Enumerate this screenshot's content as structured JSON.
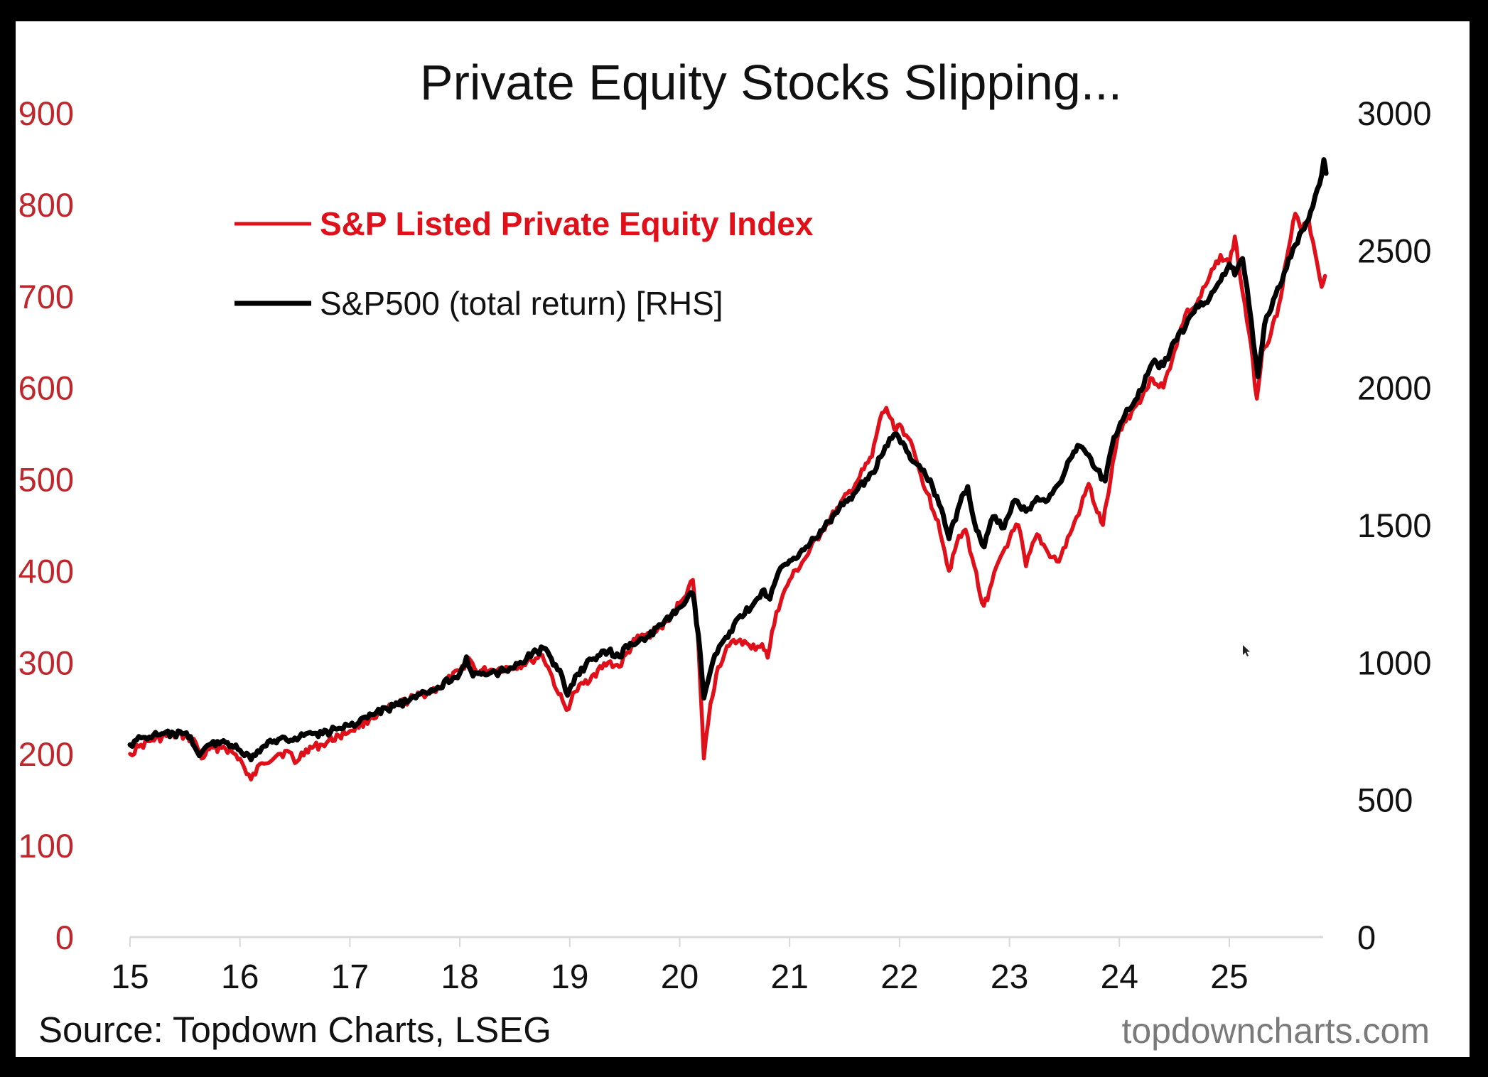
{
  "chart_data": {
    "type": "line",
    "title": "Private Equity Stocks Slipping...",
    "source": "Source: Topdown Charts, LSEG",
    "watermark": "topdowncharts.com",
    "xlabel": "",
    "x_ticks": [
      "15",
      "16",
      "17",
      "18",
      "19",
      "20",
      "21",
      "22",
      "23",
      "24",
      "25"
    ],
    "x_range": [
      2015,
      2025.85
    ],
    "y_left": {
      "label": "",
      "ticks": [
        "0",
        "100",
        "200",
        "300",
        "400",
        "500",
        "600",
        "700",
        "800",
        "900"
      ],
      "range": [
        0,
        900
      ],
      "color": "#c0272d"
    },
    "y_right": {
      "label": "",
      "ticks": [
        "0",
        "500",
        "1000",
        "1500",
        "2000",
        "2500",
        "3000"
      ],
      "range": [
        0,
        3000
      ],
      "color": "#111111"
    },
    "grid": false,
    "legend_position": "top-left",
    "series": [
      {
        "name": "S&P Listed Private Equity Index",
        "axis": "left",
        "color": "#e0101a",
        "points": [
          [
            2015.0,
            200
          ],
          [
            2015.08,
            208
          ],
          [
            2015.2,
            215
          ],
          [
            2015.35,
            220
          ],
          [
            2015.5,
            220
          ],
          [
            2015.6,
            212
          ],
          [
            2015.65,
            195
          ],
          [
            2015.72,
            205
          ],
          [
            2015.85,
            208
          ],
          [
            2016.0,
            195
          ],
          [
            2016.06,
            178
          ],
          [
            2016.1,
            172
          ],
          [
            2016.2,
            190
          ],
          [
            2016.35,
            200
          ],
          [
            2016.45,
            202
          ],
          [
            2016.5,
            190
          ],
          [
            2016.6,
            205
          ],
          [
            2016.75,
            210
          ],
          [
            2016.9,
            220
          ],
          [
            2017.0,
            225
          ],
          [
            2017.2,
            240
          ],
          [
            2017.4,
            252
          ],
          [
            2017.6,
            262
          ],
          [
            2017.8,
            272
          ],
          [
            2018.0,
            290
          ],
          [
            2018.08,
            305
          ],
          [
            2018.15,
            290
          ],
          [
            2018.3,
            292
          ],
          [
            2018.5,
            295
          ],
          [
            2018.65,
            302
          ],
          [
            2018.75,
            308
          ],
          [
            2018.82,
            290
          ],
          [
            2018.9,
            265
          ],
          [
            2018.97,
            248
          ],
          [
            2019.05,
            268
          ],
          [
            2019.2,
            285
          ],
          [
            2019.35,
            300
          ],
          [
            2019.45,
            295
          ],
          [
            2019.6,
            325
          ],
          [
            2019.75,
            332
          ],
          [
            2019.9,
            345
          ],
          [
            2020.0,
            365
          ],
          [
            2020.12,
            390
          ],
          [
            2020.17,
            320
          ],
          [
            2020.22,
            195
          ],
          [
            2020.28,
            255
          ],
          [
            2020.35,
            295
          ],
          [
            2020.45,
            318
          ],
          [
            2020.55,
            325
          ],
          [
            2020.65,
            315
          ],
          [
            2020.75,
            320
          ],
          [
            2020.8,
            305
          ],
          [
            2020.88,
            355
          ],
          [
            2021.0,
            390
          ],
          [
            2021.15,
            415
          ],
          [
            2021.3,
            445
          ],
          [
            2021.45,
            470
          ],
          [
            2021.6,
            495
          ],
          [
            2021.75,
            525
          ],
          [
            2021.82,
            565
          ],
          [
            2021.88,
            578
          ],
          [
            2021.95,
            555
          ],
          [
            2022.0,
            560
          ],
          [
            2022.08,
            545
          ],
          [
            2022.18,
            510
          ],
          [
            2022.25,
            485
          ],
          [
            2022.35,
            455
          ],
          [
            2022.45,
            400
          ],
          [
            2022.52,
            430
          ],
          [
            2022.6,
            445
          ],
          [
            2022.68,
            405
          ],
          [
            2022.75,
            365
          ],
          [
            2022.8,
            368
          ],
          [
            2022.9,
            410
          ],
          [
            2023.0,
            435
          ],
          [
            2023.08,
            450
          ],
          [
            2023.15,
            405
          ],
          [
            2023.25,
            440
          ],
          [
            2023.35,
            420
          ],
          [
            2023.45,
            410
          ],
          [
            2023.55,
            440
          ],
          [
            2023.65,
            470
          ],
          [
            2023.72,
            495
          ],
          [
            2023.78,
            470
          ],
          [
            2023.85,
            450
          ],
          [
            2023.92,
            500
          ],
          [
            2024.0,
            555
          ],
          [
            2024.15,
            580
          ],
          [
            2024.3,
            610
          ],
          [
            2024.4,
            600
          ],
          [
            2024.5,
            640
          ],
          [
            2024.6,
            680
          ],
          [
            2024.7,
            690
          ],
          [
            2024.8,
            715
          ],
          [
            2024.92,
            745
          ],
          [
            2025.0,
            735
          ],
          [
            2025.05,
            765
          ],
          [
            2025.1,
            720
          ],
          [
            2025.18,
            660
          ],
          [
            2025.25,
            588
          ],
          [
            2025.3,
            640
          ],
          [
            2025.38,
            660
          ],
          [
            2025.45,
            690
          ],
          [
            2025.52,
            740
          ],
          [
            2025.6,
            790
          ],
          [
            2025.66,
            770
          ],
          [
            2025.72,
            785
          ],
          [
            2025.76,
            760
          ],
          [
            2025.8,
            735
          ],
          [
            2025.84,
            710
          ],
          [
            2025.87,
            722
          ]
        ]
      },
      {
        "name": "S&P500 (total return) [RHS]",
        "axis": "right",
        "color": "#000000",
        "points": [
          [
            2015.0,
            700
          ],
          [
            2015.1,
            725
          ],
          [
            2015.25,
            735
          ],
          [
            2015.4,
            740
          ],
          [
            2015.55,
            730
          ],
          [
            2015.63,
            660
          ],
          [
            2015.72,
            700
          ],
          [
            2015.85,
            715
          ],
          [
            2016.0,
            680
          ],
          [
            2016.1,
            645
          ],
          [
            2016.2,
            690
          ],
          [
            2016.35,
            720
          ],
          [
            2016.5,
            725
          ],
          [
            2016.6,
            740
          ],
          [
            2016.75,
            740
          ],
          [
            2016.9,
            760
          ],
          [
            2017.0,
            770
          ],
          [
            2017.2,
            810
          ],
          [
            2017.4,
            840
          ],
          [
            2017.6,
            870
          ],
          [
            2017.8,
            910
          ],
          [
            2018.0,
            960
          ],
          [
            2018.06,
            1020
          ],
          [
            2018.12,
            950
          ],
          [
            2018.25,
            955
          ],
          [
            2018.4,
            970
          ],
          [
            2018.55,
            1000
          ],
          [
            2018.7,
            1040
          ],
          [
            2018.78,
            1050
          ],
          [
            2018.85,
            990
          ],
          [
            2018.93,
            950
          ],
          [
            2018.98,
            880
          ],
          [
            2019.05,
            950
          ],
          [
            2019.2,
            1010
          ],
          [
            2019.35,
            1040
          ],
          [
            2019.45,
            1020
          ],
          [
            2019.55,
            1070
          ],
          [
            2019.7,
            1090
          ],
          [
            2019.85,
            1140
          ],
          [
            2020.0,
            1200
          ],
          [
            2020.12,
            1250
          ],
          [
            2020.17,
            1100
          ],
          [
            2020.22,
            870
          ],
          [
            2020.3,
            1000
          ],
          [
            2020.4,
            1080
          ],
          [
            2020.55,
            1170
          ],
          [
            2020.65,
            1200
          ],
          [
            2020.75,
            1260
          ],
          [
            2020.82,
            1230
          ],
          [
            2020.9,
            1330
          ],
          [
            2021.0,
            1370
          ],
          [
            2021.15,
            1420
          ],
          [
            2021.3,
            1480
          ],
          [
            2021.45,
            1560
          ],
          [
            2021.6,
            1620
          ],
          [
            2021.75,
            1690
          ],
          [
            2021.85,
            1760
          ],
          [
            2021.95,
            1830
          ],
          [
            2022.03,
            1800
          ],
          [
            2022.1,
            1740
          ],
          [
            2022.2,
            1700
          ],
          [
            2022.3,
            1640
          ],
          [
            2022.38,
            1560
          ],
          [
            2022.45,
            1450
          ],
          [
            2022.55,
            1580
          ],
          [
            2022.62,
            1640
          ],
          [
            2022.7,
            1480
          ],
          [
            2022.77,
            1420
          ],
          [
            2022.85,
            1530
          ],
          [
            2022.95,
            1490
          ],
          [
            2023.05,
            1590
          ],
          [
            2023.15,
            1550
          ],
          [
            2023.25,
            1600
          ],
          [
            2023.35,
            1590
          ],
          [
            2023.45,
            1650
          ],
          [
            2023.55,
            1740
          ],
          [
            2023.62,
            1790
          ],
          [
            2023.7,
            1760
          ],
          [
            2023.8,
            1700
          ],
          [
            2023.87,
            1660
          ],
          [
            2023.95,
            1820
          ],
          [
            2024.05,
            1900
          ],
          [
            2024.2,
            1990
          ],
          [
            2024.3,
            2090
          ],
          [
            2024.4,
            2080
          ],
          [
            2024.5,
            2170
          ],
          [
            2024.6,
            2220
          ],
          [
            2024.7,
            2300
          ],
          [
            2024.8,
            2310
          ],
          [
            2024.9,
            2380
          ],
          [
            2025.0,
            2450
          ],
          [
            2025.05,
            2410
          ],
          [
            2025.12,
            2470
          ],
          [
            2025.18,
            2300
          ],
          [
            2025.22,
            2160
          ],
          [
            2025.26,
            2040
          ],
          [
            2025.32,
            2230
          ],
          [
            2025.4,
            2320
          ],
          [
            2025.5,
            2420
          ],
          [
            2025.6,
            2520
          ],
          [
            2025.7,
            2600
          ],
          [
            2025.76,
            2660
          ],
          [
            2025.82,
            2740
          ],
          [
            2025.86,
            2830
          ],
          [
            2025.88,
            2780
          ]
        ]
      }
    ]
  },
  "cursor": {
    "icon": "mouse-pointer-icon"
  }
}
